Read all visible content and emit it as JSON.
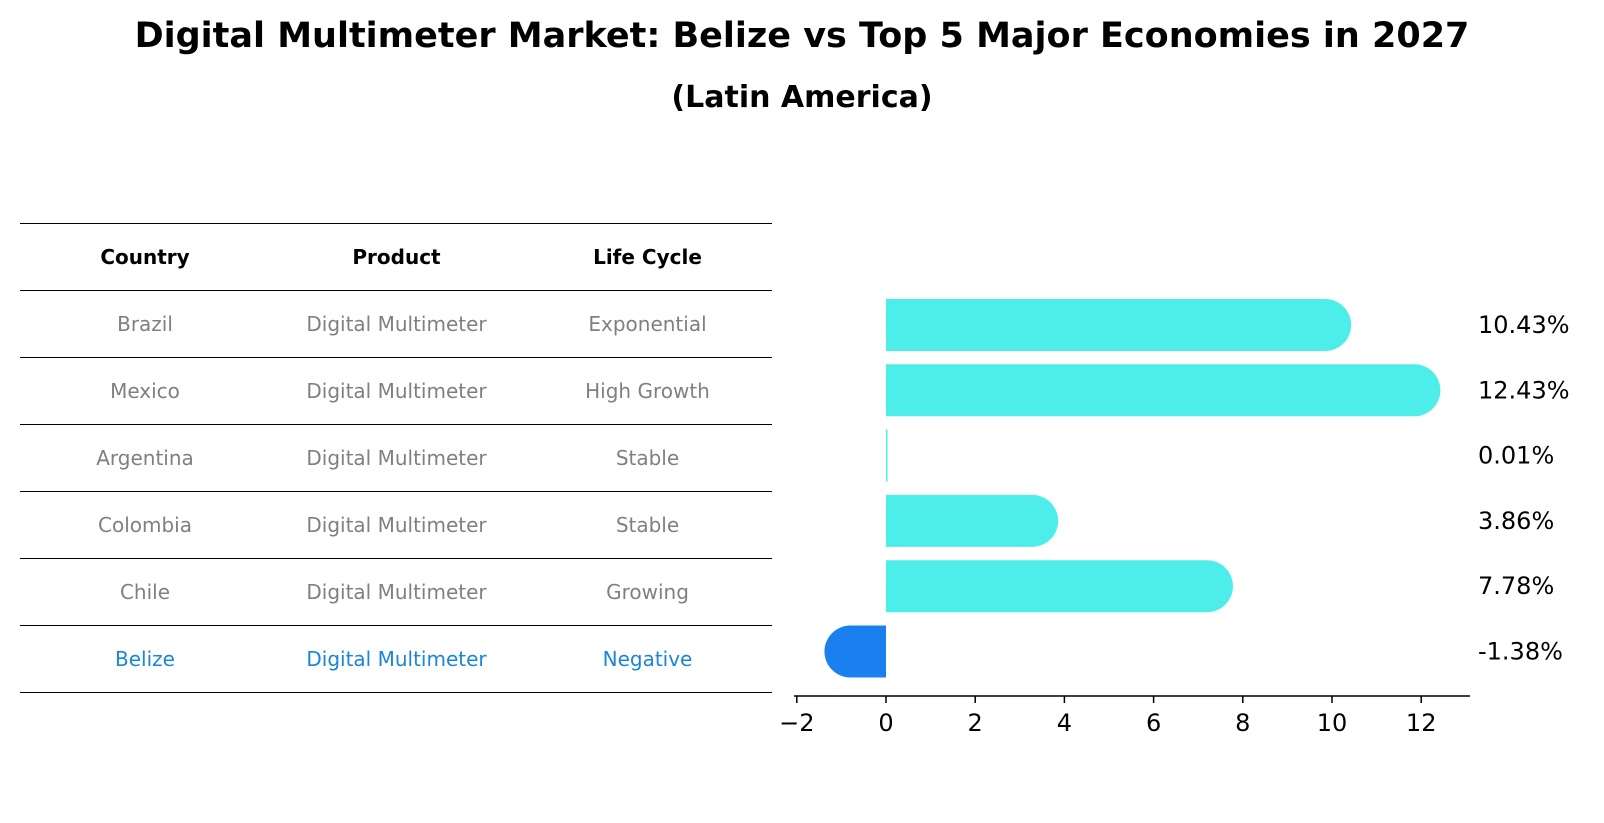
{
  "title": "Digital Multimeter Market: Belize vs Top 5 Major Economies in 2027",
  "subtitle": "(Latin America)",
  "table": {
    "headers": [
      "Country",
      "Product",
      "Life Cycle"
    ],
    "rows": [
      {
        "country": "Brazil",
        "product": "Digital Multimeter",
        "life_cycle": "Exponential"
      },
      {
        "country": "Mexico",
        "product": "Digital Multimeter",
        "life_cycle": "High Growth"
      },
      {
        "country": "Argentina",
        "product": "Digital Multimeter",
        "life_cycle": "Stable"
      },
      {
        "country": "Colombia",
        "product": "Digital Multimeter",
        "life_cycle": "Stable"
      },
      {
        "country": "Chile",
        "product": "Digital Multimeter",
        "life_cycle": "Growing"
      },
      {
        "country": "Belize",
        "product": "Digital Multimeter",
        "life_cycle": "Negative"
      }
    ]
  },
  "chart_data": {
    "type": "bar",
    "orientation": "horizontal",
    "categories": [
      "Brazil",
      "Mexico",
      "Argentina",
      "Colombia",
      "Chile",
      "Belize"
    ],
    "values": [
      10.43,
      12.43,
      0.01,
      3.86,
      7.78,
      -1.38
    ],
    "value_labels": [
      "10.43%",
      "12.43%",
      "0.01%",
      "3.86%",
      "7.78%",
      "-1.38%"
    ],
    "xlim": [
      -2,
      13
    ],
    "xticks": [
      -2,
      0,
      2,
      4,
      6,
      8,
      10,
      12
    ],
    "xtick_labels": [
      "−2",
      "0",
      "2",
      "4",
      "6",
      "8",
      "10",
      "12"
    ],
    "grid": false,
    "colors": {
      "default": "#4deeea",
      "highlight": "#1a80f0"
    },
    "highlight_category": "Belize"
  }
}
